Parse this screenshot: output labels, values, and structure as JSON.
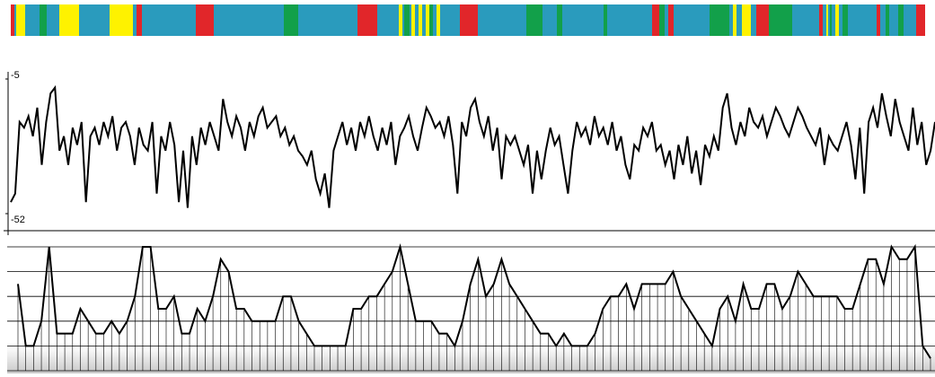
{
  "chart_data": [
    {
      "type": "band",
      "color": "#2a9bbd",
      "xlim": [
        12,
        1030
      ],
      "segments": [
        {
          "start": 12,
          "end": 16,
          "color": "#e1262a"
        },
        {
          "start": 18,
          "end": 28,
          "color": "#fef200"
        },
        {
          "start": 44,
          "end": 52,
          "color": "#12a04a"
        },
        {
          "start": 66,
          "end": 88,
          "color": "#fef200"
        },
        {
          "start": 122,
          "end": 148,
          "color": "#fef200"
        },
        {
          "start": 152,
          "end": 158,
          "color": "#e1262a"
        },
        {
          "start": 218,
          "end": 238,
          "color": "#e1262a"
        },
        {
          "start": 316,
          "end": 332,
          "color": "#12a04a"
        },
        {
          "start": 398,
          "end": 420,
          "color": "#e1262a"
        },
        {
          "start": 444,
          "end": 448,
          "color": "#fef200"
        },
        {
          "start": 450,
          "end": 456,
          "color": "#12a04a"
        },
        {
          "start": 458,
          "end": 462,
          "color": "#fef200"
        },
        {
          "start": 466,
          "end": 470,
          "color": "#fef200"
        },
        {
          "start": 474,
          "end": 478,
          "color": "#fef200"
        },
        {
          "start": 478,
          "end": 482,
          "color": "#12a04a"
        },
        {
          "start": 486,
          "end": 490,
          "color": "#fef200"
        },
        {
          "start": 512,
          "end": 532,
          "color": "#e1262a"
        },
        {
          "start": 586,
          "end": 604,
          "color": "#12a04a"
        },
        {
          "start": 620,
          "end": 626,
          "color": "#12a04a"
        },
        {
          "start": 672,
          "end": 676,
          "color": "#12a04a"
        },
        {
          "start": 726,
          "end": 734,
          "color": "#e1262a"
        },
        {
          "start": 734,
          "end": 740,
          "color": "#12a04a"
        },
        {
          "start": 744,
          "end": 750,
          "color": "#e1262a"
        },
        {
          "start": 790,
          "end": 812,
          "color": "#12a04a"
        },
        {
          "start": 816,
          "end": 820,
          "color": "#fef200"
        },
        {
          "start": 826,
          "end": 836,
          "color": "#fef200"
        },
        {
          "start": 842,
          "end": 856,
          "color": "#e1262a"
        },
        {
          "start": 856,
          "end": 882,
          "color": "#12a04a"
        },
        {
          "start": 912,
          "end": 916,
          "color": "#e1262a"
        },
        {
          "start": 920,
          "end": 922,
          "color": "#fef200"
        },
        {
          "start": 924,
          "end": 926,
          "color": "#12a04a"
        },
        {
          "start": 930,
          "end": 934,
          "color": "#fef200"
        },
        {
          "start": 938,
          "end": 944,
          "color": "#12a04a"
        },
        {
          "start": 976,
          "end": 980,
          "color": "#e1262a"
        },
        {
          "start": 986,
          "end": 990,
          "color": "#12a04a"
        },
        {
          "start": 1000,
          "end": 1006,
          "color": "#12a04a"
        },
        {
          "start": 1020,
          "end": 1030,
          "color": "#e1262a"
        }
      ]
    },
    {
      "type": "line",
      "color": "#000000",
      "ylim": [
        -52,
        -5
      ],
      "yticks": [
        -5,
        -52
      ],
      "values": [
        -48,
        -45,
        -20,
        -22,
        -18,
        -25,
        -15,
        -35,
        -20,
        -10,
        -8,
        -30,
        -25,
        -35,
        -22,
        -28,
        -20,
        -48,
        -25,
        -22,
        -28,
        -20,
        -25,
        -18,
        -30,
        -22,
        -20,
        -25,
        -35,
        -22,
        -28,
        -30,
        -20,
        -45,
        -25,
        -30,
        -20,
        -28,
        -48,
        -30,
        -50,
        -25,
        -35,
        -22,
        -28,
        -20,
        -25,
        -30,
        -12,
        -20,
        -25,
        -18,
        -22,
        -30,
        -20,
        -25,
        -18,
        -15,
        -22,
        -20,
        -18,
        -25,
        -22,
        -28,
        -25,
        -30,
        -32,
        -35,
        -30,
        -40,
        -45,
        -38,
        -50,
        -30,
        -25,
        -20,
        -28,
        -22,
        -30,
        -20,
        -25,
        -18,
        -25,
        -30,
        -22,
        -28,
        -20,
        -35,
        -25,
        -22,
        -18,
        -25,
        -30,
        -22,
        -15,
        -18,
        -22,
        -20,
        -25,
        -18,
        -28,
        -45,
        -20,
        -25,
        -15,
        -12,
        -20,
        -25,
        -18,
        -30,
        -22,
        -40,
        -25,
        -28,
        -25,
        -30,
        -35,
        -28,
        -45,
        -30,
        -40,
        -30,
        -22,
        -28,
        -25,
        -35,
        -45,
        -30,
        -20,
        -25,
        -22,
        -28,
        -18,
        -25,
        -22,
        -28,
        -20,
        -30,
        -25,
        -35,
        -40,
        -28,
        -30,
        -22,
        -25,
        -20,
        -30,
        -28,
        -35,
        -30,
        -40,
        -28,
        -35,
        -25,
        -38,
        -30,
        -42,
        -28,
        -32,
        -25,
        -30,
        -15,
        -10,
        -22,
        -28,
        -20,
        -25,
        -15,
        -20,
        -22,
        -18,
        -25,
        -20,
        -15,
        -18,
        -22,
        -25,
        -20,
        -15,
        -18,
        -22,
        -25,
        -28,
        -22,
        -35,
        -25,
        -28,
        -30,
        -25,
        -20,
        -28,
        -40,
        -22,
        -45,
        -20,
        -15,
        -22,
        -10,
        -18,
        -25,
        -12,
        -20,
        -25,
        -30,
        -15,
        -28,
        -20,
        -35,
        -30,
        -20
      ]
    },
    {
      "type": "step",
      "color": "#000000",
      "ylim": [
        0,
        5
      ],
      "yticks": [
        0,
        1,
        2,
        3,
        4,
        5
      ],
      "grid": true,
      "values": [
        3.5,
        1,
        1,
        2,
        5,
        1.5,
        1.5,
        1.5,
        2.5,
        2,
        1.5,
        1.5,
        2,
        1.5,
        2,
        3,
        5,
        5,
        2.5,
        2.5,
        3,
        1.5,
        1.5,
        2.5,
        2,
        3,
        4.5,
        4,
        2.5,
        2.5,
        2,
        2,
        2,
        2,
        3,
        3,
        2,
        1.5,
        1,
        1,
        1,
        1,
        1,
        2.5,
        2.5,
        3,
        3,
        3.5,
        4,
        5,
        3.5,
        2,
        2,
        2,
        1.5,
        1.5,
        1,
        2,
        3.5,
        4.5,
        3,
        3.5,
        4.5,
        3.5,
        3,
        2.5,
        2,
        1.5,
        1.5,
        1,
        1.5,
        1,
        1,
        1,
        1.5,
        2.5,
        3,
        3,
        3.5,
        2.5,
        3.5,
        3.5,
        3.5,
        3.5,
        4,
        3,
        2.5,
        2,
        1.5,
        1,
        2.5,
        3,
        2,
        3.5,
        2.5,
        2.5,
        3.5,
        3.5,
        2.5,
        3,
        4,
        3.5,
        3,
        3,
        3,
        3,
        2.5,
        2.5,
        3.5,
        4.5,
        4.5,
        3.5,
        5,
        4.5,
        4.5,
        5,
        1,
        0.5
      ]
    }
  ]
}
